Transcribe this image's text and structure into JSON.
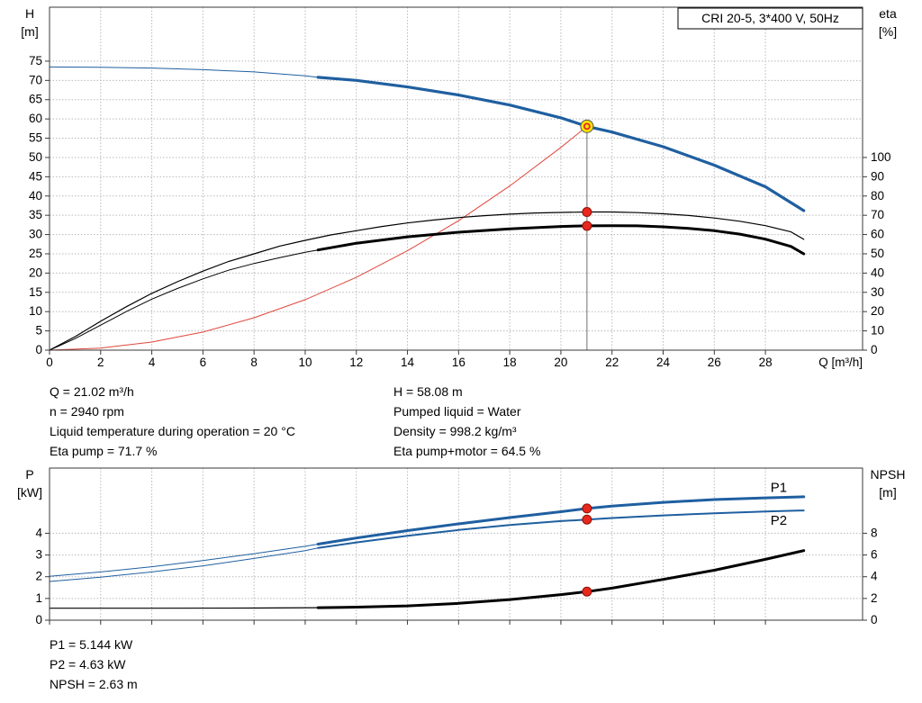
{
  "colors": {
    "blue": "#1f5fa0",
    "black": "#000000",
    "red": "#e0463c",
    "marker_red": "#e8281e",
    "marker_yellow": "#ffe600",
    "duty_line": "#6f6f6f"
  },
  "info_top": {
    "left": [
      "Q = 21.02 m³/h",
      "n = 2940 rpm",
      "Liquid temperature during operation = 20 °C",
      "Eta pump = 71.7 %"
    ],
    "right": [
      "H = 58.08 m",
      "Pumped liquid = Water",
      "Density = 998.2 kg/m³",
      "Eta pump+motor = 64.5 %"
    ]
  },
  "info_bottom": [
    "P1 = 5.144 kW",
    "P2 = 4.63 kW",
    "NPSH = 2.63 m"
  ],
  "chart_data": [
    {
      "type": "line",
      "title": "CRI 20-5, 3*400 V, 50Hz",
      "xlabel": "Q [m³/h]",
      "ylabel_left_lines": [
        "H",
        "[m]"
      ],
      "ylabel_right_lines": [
        "eta",
        "[%]"
      ],
      "xlim": [
        0,
        31.8
      ],
      "ylim_left": [
        0,
        89
      ],
      "right_axis_scale": 0.5,
      "xticks": [
        0,
        2,
        4,
        6,
        8,
        10,
        12,
        14,
        16,
        18,
        20,
        22,
        24,
        26,
        28
      ],
      "yticks_left": [
        0,
        5,
        10,
        15,
        20,
        25,
        30,
        35,
        40,
        45,
        50,
        55,
        60,
        65,
        70,
        75
      ],
      "yticks_right": [
        0,
        10,
        20,
        30,
        40,
        50,
        60,
        70,
        80,
        90,
        100
      ],
      "op_line": {
        "x": 21.02,
        "h": 58.08
      },
      "series": [
        {
          "name": "head-curve-extrapolated",
          "axis": "left",
          "color": "blue",
          "width": 1,
          "points": [
            [
              0,
              73.5
            ],
            [
              2,
              73.4
            ],
            [
              4,
              73.2
            ],
            [
              6,
              72.8
            ],
            [
              8,
              72.2
            ],
            [
              10,
              71.2
            ],
            [
              10.5,
              70.8
            ]
          ]
        },
        {
          "name": "head-curve",
          "axis": "left",
          "color": "blue",
          "width": 3.2,
          "points": [
            [
              10.5,
              70.8
            ],
            [
              12,
              70.0
            ],
            [
              14,
              68.3
            ],
            [
              16,
              66.2
            ],
            [
              18,
              63.6
            ],
            [
              20,
              60.3
            ],
            [
              21.02,
              58.08
            ],
            [
              22,
              56.6
            ],
            [
              24,
              52.8
            ],
            [
              26,
              48.0
            ],
            [
              28,
              42.4
            ],
            [
              29.5,
              36.2
            ]
          ]
        },
        {
          "name": "system-curve",
          "axis": "left",
          "color": "red",
          "width": 1,
          "points": [
            [
              0,
              0
            ],
            [
              2,
              0.53
            ],
            [
              4,
              2.1
            ],
            [
              6,
              4.7
            ],
            [
              8,
              8.4
            ],
            [
              10,
              13.1
            ],
            [
              12,
              18.9
            ],
            [
              14,
              25.8
            ],
            [
              16,
              33.6
            ],
            [
              18,
              42.6
            ],
            [
              20,
              52.6
            ],
            [
              21.02,
              58.08
            ]
          ]
        },
        {
          "name": "eta-pump-curve",
          "axis": "right",
          "color": "black",
          "width": 1.2,
          "points": [
            [
              0,
              0
            ],
            [
              1,
              7
            ],
            [
              2,
              15
            ],
            [
              3,
              22.5
            ],
            [
              4,
              29.5
            ],
            [
              5,
              35.5
            ],
            [
              6,
              41
            ],
            [
              7,
              46
            ],
            [
              8,
              50
            ],
            [
              9,
              54
            ],
            [
              10,
              57
            ],
            [
              11,
              59.8
            ],
            [
              12,
              62
            ],
            [
              13,
              64.2
            ],
            [
              14,
              66
            ],
            [
              15,
              67.5
            ],
            [
              16,
              68.8
            ],
            [
              17,
              69.8
            ],
            [
              18,
              70.6
            ],
            [
              19,
              71.2
            ],
            [
              20,
              71.5
            ],
            [
              21.02,
              71.7
            ],
            [
              22,
              71.7
            ],
            [
              23,
              71.4
            ],
            [
              24,
              70.8
            ],
            [
              25,
              69.9
            ],
            [
              26,
              68.6
            ],
            [
              27,
              66.9
            ],
            [
              28,
              64.6
            ],
            [
              29,
              61.4
            ],
            [
              29.5,
              57.5
            ]
          ]
        },
        {
          "name": "eta-pump-motor-extrapolated",
          "axis": "right",
          "color": "black",
          "width": 1,
          "points": [
            [
              0,
              0
            ],
            [
              1,
              6
            ],
            [
              2,
              13
            ],
            [
              3,
              20
            ],
            [
              4,
              26.5
            ],
            [
              5,
              32
            ],
            [
              6,
              37
            ],
            [
              7,
              41.5
            ],
            [
              8,
              45
            ],
            [
              9,
              48
            ],
            [
              10,
              50.8
            ],
            [
              10.5,
              52
            ]
          ]
        },
        {
          "name": "eta-pump-motor-curve",
          "axis": "right",
          "color": "black",
          "width": 3,
          "points": [
            [
              10.5,
              52
            ],
            [
              12,
              55.5
            ],
            [
              14,
              58.8
            ],
            [
              16,
              61.2
            ],
            [
              18,
              63
            ],
            [
              20,
              64.2
            ],
            [
              21.02,
              64.5
            ],
            [
              22,
              64.6
            ],
            [
              23,
              64.5
            ],
            [
              24,
              64
            ],
            [
              25,
              63.2
            ],
            [
              26,
              62
            ],
            [
              27,
              60.2
            ],
            [
              28,
              57.6
            ],
            [
              29,
              53.8
            ],
            [
              29.5,
              50
            ]
          ]
        }
      ],
      "markers": [
        {
          "x": 21.02,
          "v": 71.7,
          "axis": "right",
          "type": "dot",
          "name": "eta-pump-marker"
        },
        {
          "x": 21.02,
          "v": 64.5,
          "axis": "right",
          "type": "dot",
          "name": "eta-pump-motor-marker"
        },
        {
          "x": 21.02,
          "v": 58.08,
          "axis": "left",
          "type": "duty",
          "name": "duty-point-marker"
        }
      ],
      "annotations": []
    },
    {
      "type": "line",
      "title": "",
      "xlabel": "",
      "ylabel_left_lines": [
        "P",
        "[kW]"
      ],
      "ylabel_right_lines": [
        "NPSH",
        "[m]"
      ],
      "xlim": [
        0,
        31.8
      ],
      "ylim_left": [
        0,
        7
      ],
      "right_axis_scale": 0.5,
      "xticks": [
        0,
        2,
        4,
        6,
        8,
        10,
        12,
        14,
        16,
        18,
        20,
        22,
        24,
        26,
        28
      ],
      "yticks_left": [
        0,
        1,
        2,
        3,
        4
      ],
      "yticks_right": [
        0,
        2,
        4,
        6,
        8
      ],
      "series": [
        {
          "name": "p1-curve-extrapolated",
          "axis": "left",
          "color": "blue",
          "width": 1,
          "points": [
            [
              0,
              2.02
            ],
            [
              2,
              2.22
            ],
            [
              4,
              2.46
            ],
            [
              6,
              2.74
            ],
            [
              8,
              3.06
            ],
            [
              10,
              3.4
            ],
            [
              10.5,
              3.5
            ]
          ]
        },
        {
          "name": "p2-curve-extrapolated",
          "axis": "left",
          "color": "blue",
          "width": 1,
          "points": [
            [
              0,
              1.78
            ],
            [
              2,
              1.98
            ],
            [
              4,
              2.22
            ],
            [
              6,
              2.5
            ],
            [
              8,
              2.84
            ],
            [
              10,
              3.2
            ],
            [
              10.5,
              3.32
            ]
          ]
        },
        {
          "name": "p1-curve",
          "axis": "left",
          "color": "blue",
          "width": 3,
          "points": [
            [
              10.5,
              3.5
            ],
            [
              12,
              3.78
            ],
            [
              14,
              4.12
            ],
            [
              16,
              4.43
            ],
            [
              18,
              4.72
            ],
            [
              20,
              4.99
            ],
            [
              21.02,
              5.14
            ],
            [
              22,
              5.25
            ],
            [
              24,
              5.42
            ],
            [
              26,
              5.55
            ],
            [
              28,
              5.63
            ],
            [
              29.5,
              5.68
            ]
          ]
        },
        {
          "name": "p2-curve",
          "axis": "left",
          "color": "blue",
          "width": 2,
          "points": [
            [
              10.5,
              3.32
            ],
            [
              12,
              3.58
            ],
            [
              14,
              3.88
            ],
            [
              16,
              4.15
            ],
            [
              18,
              4.38
            ],
            [
              20,
              4.56
            ],
            [
              21.02,
              4.63
            ],
            [
              22,
              4.7
            ],
            [
              24,
              4.82
            ],
            [
              26,
              4.92
            ],
            [
              28,
              5.0
            ],
            [
              29.5,
              5.05
            ]
          ]
        },
        {
          "name": "npsh-curve-extrapolated",
          "axis": "right",
          "color": "black",
          "width": 1.2,
          "points": [
            [
              0,
              1.1
            ],
            [
              4,
              1.1
            ],
            [
              8,
              1.12
            ],
            [
              10.5,
              1.15
            ]
          ]
        },
        {
          "name": "npsh-curve",
          "axis": "right",
          "color": "black",
          "width": 3,
          "points": [
            [
              10.5,
              1.15
            ],
            [
              12,
              1.2
            ],
            [
              14,
              1.32
            ],
            [
              16,
              1.55
            ],
            [
              18,
              1.9
            ],
            [
              20,
              2.35
            ],
            [
              21.02,
              2.63
            ],
            [
              22,
              2.95
            ],
            [
              24,
              3.75
            ],
            [
              26,
              4.6
            ],
            [
              28,
              5.6
            ],
            [
              29.5,
              6.4
            ]
          ]
        }
      ],
      "markers": [
        {
          "x": 21.02,
          "v": 5.14,
          "axis": "left",
          "type": "dot",
          "name": "p1-marker"
        },
        {
          "x": 21.02,
          "v": 4.63,
          "axis": "left",
          "type": "dot",
          "name": "p2-marker"
        },
        {
          "x": 21.02,
          "v": 2.63,
          "axis": "right",
          "type": "dot",
          "name": "npsh-marker"
        }
      ],
      "annotations": [
        {
          "text": "P1",
          "x": 28.2,
          "y": 5.9,
          "color": "blue"
        },
        {
          "text": "P2",
          "x": 28.2,
          "y": 4.4,
          "color": "blue"
        }
      ]
    }
  ]
}
